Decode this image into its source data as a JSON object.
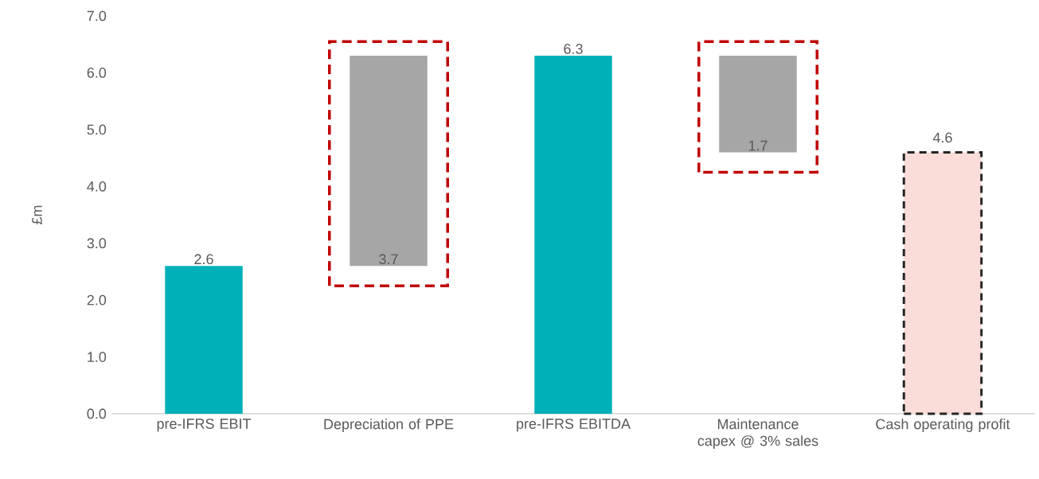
{
  "chart_data": {
    "type": "bar",
    "ylabel": "£m",
    "categories": [
      "pre-IFRS EBIT",
      "Depreciation of PPE",
      "pre-IFRS EBITDA",
      "Maintenance capex @ 3% sales",
      "Cash operating profit"
    ],
    "values": [
      2.6,
      3.7,
      6.3,
      1.7,
      4.6
    ],
    "base": [
      0,
      2.6,
      0,
      4.6,
      0
    ],
    "colors": [
      "#00b0b9",
      "#a6a6a6",
      "#00b0b9",
      "#a6a6a6",
      "#fadcd8"
    ],
    "data_labels": true,
    "ylim": [
      0,
      7
    ],
    "yticks": [
      {
        "value": 0,
        "label": "0.0"
      },
      {
        "value": 1,
        "label": "1.0"
      },
      {
        "value": 2,
        "label": "2.0"
      },
      {
        "value": 3,
        "label": "3.0"
      },
      {
        "value": 4,
        "label": "4.0"
      },
      {
        "value": 5,
        "label": "5.0"
      },
      {
        "value": 6,
        "label": "6.0"
      },
      {
        "value": 7,
        "label": "7.0"
      }
    ]
  }
}
